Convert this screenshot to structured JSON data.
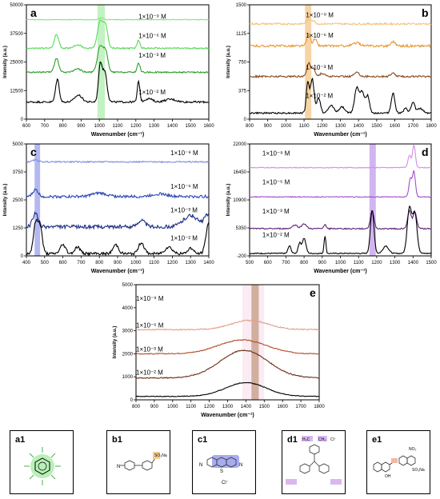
{
  "chart_data": [
    {
      "panel": "a",
      "type": "line",
      "xlabel": "Wavenumber (cm⁻¹)",
      "ylabel": "Intensity (a.u.)",
      "xlim": [
        600,
        1600
      ],
      "ylim": [
        0,
        50000
      ],
      "xticks": [
        "600",
        "700",
        "800",
        "900",
        "1000",
        "1100",
        "1200",
        "1300",
        "1400",
        "1500",
        "1600"
      ],
      "yticks": [
        "0",
        "12500",
        "25000",
        "37500",
        "50000"
      ],
      "highlight": {
        "x": [
          990,
          1030
        ],
        "color": "#b8f0b8"
      },
      "series": [
        {
          "name": "1×10⁻⁹ M",
          "color": "#7fe67f",
          "base": 43500,
          "noise": 150,
          "peaks": [
            [
              1010,
              800,
              12
            ]
          ]
        },
        {
          "name": "1×10⁻⁶ M",
          "color": "#59d959",
          "base": 31000,
          "noise": 300,
          "peaks": [
            [
              765,
              6000,
              12
            ],
            [
              880,
              1500,
              20
            ],
            [
              1005,
              12000,
              15
            ],
            [
              1035,
              9000,
              12
            ],
            [
              1215,
              3500,
              8
            ]
          ]
        },
        {
          "name": "1×10⁻³ M",
          "color": "#2e9e2e",
          "base": 20500,
          "noise": 300,
          "peaks": [
            [
              765,
              6000,
              12
            ],
            [
              880,
              1500,
              20
            ],
            [
              1005,
              11500,
              15
            ],
            [
              1035,
              8500,
              12
            ],
            [
              1215,
              4000,
              8
            ]
          ]
        },
        {
          "name": "1×10⁻² M",
          "color": "#000000",
          "base": 7500,
          "noise": 400,
          "peaks": [
            [
              770,
              10000,
              10
            ],
            [
              885,
              3000,
              20
            ],
            [
              1005,
              16000,
              10
            ],
            [
              1030,
              13000,
              12
            ],
            [
              1215,
              9000,
              7
            ],
            [
              1270,
              1500,
              20
            ],
            [
              1390,
              1200,
              30
            ]
          ]
        }
      ],
      "label_x": 1215,
      "label_y": [
        43800,
        35500,
        27000,
        10800
      ]
    },
    {
      "panel": "b",
      "type": "line",
      "xlabel": "Wavenumber (cm⁻¹)",
      "ylabel": "Intensity (a.u.)",
      "xlim": [
        800,
        1800
      ],
      "ylim": [
        0,
        1500
      ],
      "xticks": [
        "800",
        "900",
        "1000",
        "1100",
        "1200",
        "1300",
        "1400",
        "1500",
        "1600",
        "1700",
        "1800"
      ],
      "yticks": [
        "0",
        "375",
        "750",
        "1125",
        "1500"
      ],
      "highlight": {
        "x": [
          1105,
          1140
        ],
        "color": "#f5cc94"
      },
      "series": [
        {
          "name": "1×10⁻⁹ M",
          "color": "#f7c27e",
          "base": 1250,
          "noise": 12,
          "peaks": [
            [
              1125,
              60,
              12
            ],
            [
              1150,
              40,
              10
            ]
          ]
        },
        {
          "name": "1×10⁻⁶ M",
          "color": "#e8993a",
          "base": 960,
          "noise": 15,
          "peaks": [
            [
              1125,
              150,
              10
            ],
            [
              1160,
              90,
              10
            ],
            [
              1390,
              40,
              20
            ],
            [
              1590,
              60,
              12
            ]
          ]
        },
        {
          "name": "1×10⁻³ M",
          "color": "#8b4a1c",
          "base": 560,
          "noise": 12,
          "peaks": [
            [
              1125,
              170,
              10
            ],
            [
              1150,
              110,
              10
            ],
            [
              1200,
              40,
              15
            ],
            [
              1390,
              50,
              15
            ],
            [
              1590,
              40,
              12
            ]
          ]
        },
        {
          "name": "1×10⁻² M",
          "color": "#000000",
          "base": 80,
          "noise": 10,
          "peaks": [
            [
              1120,
              400,
              8
            ],
            [
              1145,
              450,
              10
            ],
            [
              1180,
              200,
              10
            ],
            [
              1250,
              100,
              15
            ],
            [
              1310,
              80,
              15
            ],
            [
              1390,
              330,
              12
            ],
            [
              1420,
              280,
              12
            ],
            [
              1450,
              220,
              10
            ],
            [
              1590,
              260,
              10
            ],
            [
              1660,
              60,
              10
            ],
            [
              1700,
              140,
              10
            ],
            [
              1740,
              60,
              15
            ]
          ]
        }
      ],
      "label_x": 1110,
      "label_y": [
        1340,
        1070,
        650,
        280
      ]
    },
    {
      "panel": "c",
      "type": "line",
      "xlabel": "Wavenumber (cm⁻¹)",
      "ylabel": "Intensity (a.u.)",
      "xlim": [
        400,
        1400
      ],
      "ylim": [
        0,
        5000
      ],
      "xticks": [
        "400",
        "500",
        "600",
        "700",
        "800",
        "900",
        "1000",
        "1100",
        "1200",
        "1300",
        "1400"
      ],
      "yticks": [
        "0",
        "1250",
        "2500",
        "3750",
        "5000"
      ],
      "highlight": {
        "x": [
          445,
          475
        ],
        "color": "#a6acee"
      },
      "series": [
        {
          "name": "1×10⁻⁹ M",
          "color": "#7f8fe0",
          "base": 4200,
          "noise": 30,
          "peaks": [
            [
              450,
              80,
              15
            ]
          ]
        },
        {
          "name": "1×10⁻⁶ M",
          "color": "#2a45b5",
          "base": 2650,
          "noise": 60,
          "peaks": [
            [
              450,
              300,
              15
            ],
            [
              800,
              150,
              40
            ],
            [
              1130,
              120,
              40
            ]
          ]
        },
        {
          "name": "1×10⁻³ M",
          "color": "#1c2e86",
          "base": 1300,
          "noise": 80,
          "peaks": [
            [
              450,
              600,
              15
            ],
            [
              1030,
              300,
              20
            ],
            [
              1300,
              500,
              40
            ],
            [
              1390,
              500,
              15
            ]
          ]
        },
        {
          "name": "1×10⁻² M",
          "color": "#000000",
          "base": 100,
          "noise": 60,
          "peaks": [
            [
              450,
              1300,
              12
            ],
            [
              475,
              1200,
              12
            ],
            [
              600,
              400,
              15
            ],
            [
              680,
              300,
              15
            ],
            [
              890,
              400,
              15
            ],
            [
              1030,
              500,
              15
            ],
            [
              1180,
              300,
              20
            ],
            [
              1300,
              250,
              15
            ],
            [
              1400,
              1400,
              15
            ]
          ]
        }
      ],
      "label_x": 1190,
      "label_y": [
        4500,
        3000,
        1950,
        700
      ]
    },
    {
      "panel": "d",
      "type": "line",
      "xlabel": "Wavenumber (cm⁻¹)",
      "ylabel": "Intensity (a.u.)",
      "xlim": [
        500,
        1500
      ],
      "ylim": [
        -200,
        22000
      ],
      "xticks": [
        "500",
        "600",
        "700",
        "800",
        "900",
        "1000",
        "1100",
        "1200",
        "1300",
        "1400",
        "1500"
      ],
      "yticks": [
        "-200",
        "5350",
        "10900",
        "16450",
        "22000"
      ],
      "highlight": {
        "x": [
          1160,
          1195
        ],
        "color": "#c9a8ee"
      },
      "series": [
        {
          "name": "1×10⁻⁹ M",
          "color": "#d48ee6",
          "base": 17300,
          "noise": 80,
          "peaks": [
            [
              1380,
              2500,
              8
            ],
            [
              1405,
              4500,
              8
            ]
          ]
        },
        {
          "name": "1×10⁻⁶ M",
          "color": "#a04fc8",
          "base": 11500,
          "noise": 80,
          "peaks": [
            [
              1385,
              3500,
              8
            ],
            [
              1405,
              5000,
              8
            ]
          ]
        },
        {
          "name": "1×10⁻³ M",
          "color": "#5e2379",
          "base": 5200,
          "noise": 120,
          "peaks": [
            [
              750,
              700,
              15
            ],
            [
              800,
              1000,
              12
            ],
            [
              915,
              900,
              6
            ],
            [
              1175,
              3500,
              10
            ],
            [
              1380,
              3500,
              10
            ],
            [
              1410,
              3200,
              10
            ]
          ]
        },
        {
          "name": "1×10⁻² M",
          "color": "#000000",
          "base": 300,
          "noise": 100,
          "peaks": [
            [
              720,
              1500,
              8
            ],
            [
              775,
              2000,
              8
            ],
            [
              800,
              3000,
              10
            ],
            [
              915,
              3500,
              5
            ],
            [
              1175,
              8500,
              10
            ],
            [
              1250,
              1500,
              15
            ],
            [
              1380,
              9000,
              12
            ],
            [
              1410,
              8000,
              12
            ]
          ]
        }
      ],
      "label_x": 570,
      "label_y": [
        19700,
        14000,
        8200,
        3500
      ]
    },
    {
      "panel": "e",
      "type": "line",
      "xlabel": "Wavenumber (cm⁻¹)",
      "ylabel": "Intensity (a.u.)",
      "xlim": [
        800,
        1800
      ],
      "ylim": [
        0,
        5000
      ],
      "xticks": [
        "800",
        "900",
        "1000",
        "1100",
        "1200",
        "1300",
        "1400",
        "1500",
        "1600",
        "1700",
        "1800"
      ],
      "yticks": [
        "0",
        "1000",
        "2000",
        "3000",
        "4000",
        "5000"
      ],
      "highlight": {
        "x": [
          1430,
          1470
        ],
        "color": "#c9a48f"
      },
      "shade": {
        "x": [
          1380,
          1500
        ],
        "color": "#f7e0ea"
      },
      "series": [
        {
          "name": "1×10⁻⁹ M",
          "color": "#e2a08a",
          "base": 3050,
          "noise": 25,
          "peaks": [
            [
              1420,
              400,
              100
            ]
          ]
        },
        {
          "name": "1×10⁻⁶ M",
          "color": "#b05030",
          "base": 2000,
          "noise": 20,
          "peaks": [
            [
              1380,
              600,
              130
            ]
          ]
        },
        {
          "name": "1×10⁻³ M",
          "color": "#6e2e16",
          "base": 950,
          "noise": 20,
          "peaks": [
            [
              1390,
              1200,
              130
            ]
          ]
        },
        {
          "name": "1×10⁻² M",
          "color": "#000000",
          "base": 150,
          "noise": 15,
          "peaks": [
            [
              1400,
              600,
              110
            ]
          ]
        }
      ],
      "label_x": 800,
      "label_y": [
        4300,
        3150,
        2100,
        1100
      ]
    }
  ],
  "molecules": [
    {
      "label": "a1",
      "name": "pyridine"
    },
    {
      "label": "b1",
      "name": "methyl orange",
      "atoms": [
        "N",
        "SO₃Na"
      ]
    },
    {
      "label": "c1",
      "name": "methylene blue",
      "atoms": [
        "N",
        "S",
        "N",
        "Cl⁻"
      ]
    },
    {
      "label": "d1",
      "name": "crystal violet",
      "atoms": [
        "H₃C",
        "CH₃",
        "Cl⁻"
      ]
    },
    {
      "label": "e1",
      "name": "eriochrome black T",
      "atoms": [
        "NO₂",
        "OH",
        "SO₃Na"
      ]
    }
  ]
}
